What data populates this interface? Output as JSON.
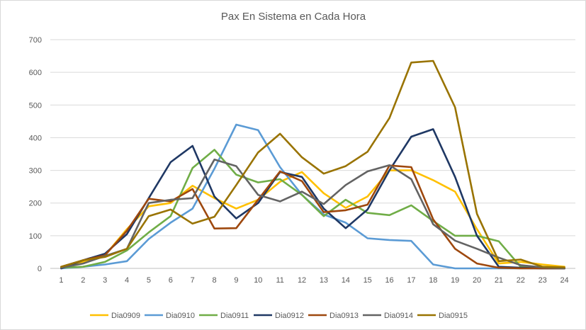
{
  "chart_data": {
    "type": "line",
    "title": "Pax En Sistema en Cada Hora",
    "xlabel": "",
    "ylabel": "",
    "ylim": [
      0,
      700
    ],
    "yticks": [
      0,
      100,
      200,
      300,
      400,
      500,
      600,
      700
    ],
    "categories": [
      "1",
      "2",
      "3",
      "4",
      "5",
      "6",
      "7",
      "8",
      "9",
      "10",
      "11",
      "12",
      "13",
      "14",
      "15",
      "16",
      "17",
      "18",
      "19",
      "20",
      "21",
      "22",
      "23",
      "24"
    ],
    "grid": "horizontal",
    "legend_position": "bottom",
    "series": [
      {
        "name": "Dia0909",
        "color": "#FFC000",
        "values": [
          2,
          20,
          40,
          120,
          190,
          200,
          253,
          215,
          183,
          210,
          265,
          295,
          230,
          185,
          220,
          300,
          300,
          270,
          235,
          120,
          15,
          20,
          12,
          5
        ]
      },
      {
        "name": "Dia0910",
        "color": "#5B9BD5",
        "values": [
          0,
          5,
          12,
          22,
          90,
          140,
          183,
          305,
          440,
          423,
          310,
          225,
          165,
          140,
          92,
          87,
          84,
          12,
          0,
          0,
          0,
          0,
          0,
          0
        ]
      },
      {
        "name": "Dia0911",
        "color": "#70AD47",
        "values": [
          2,
          5,
          20,
          55,
          110,
          160,
          307,
          363,
          287,
          263,
          273,
          225,
          160,
          210,
          170,
          163,
          193,
          145,
          100,
          100,
          83,
          5,
          2,
          0
        ]
      },
      {
        "name": "Dia0912",
        "color": "#1F3864",
        "values": [
          0,
          25,
          45,
          105,
          215,
          325,
          375,
          220,
          153,
          200,
          295,
          280,
          183,
          123,
          180,
          300,
          403,
          426,
          280,
          100,
          5,
          2,
          0,
          0
        ]
      },
      {
        "name": "Dia0913",
        "color": "#9E480E",
        "values": [
          5,
          25,
          40,
          115,
          213,
          205,
          243,
          122,
          123,
          210,
          297,
          267,
          172,
          178,
          195,
          315,
          310,
          150,
          60,
          15,
          2,
          0,
          0,
          0
        ]
      },
      {
        "name": "Dia0914",
        "color": "#636363",
        "values": [
          2,
          15,
          38,
          60,
          200,
          210,
          215,
          333,
          313,
          225,
          205,
          235,
          197,
          255,
          297,
          316,
          273,
          135,
          85,
          60,
          33,
          10,
          3,
          0
        ]
      },
      {
        "name": "Dia0915",
        "color": "#997300",
        "values": [
          5,
          25,
          35,
          60,
          160,
          180,
          137,
          158,
          255,
          355,
          412,
          340,
          290,
          313,
          357,
          460,
          630,
          635,
          493,
          167,
          22,
          27,
          5,
          3
        ]
      }
    ]
  }
}
